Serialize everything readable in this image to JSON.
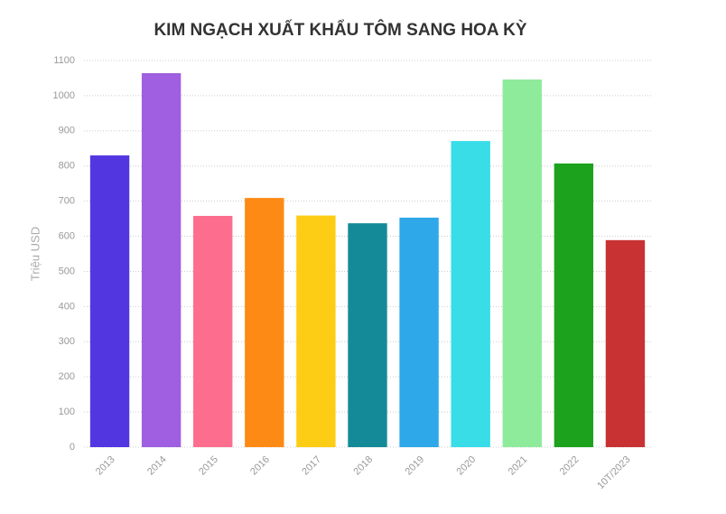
{
  "chart_data": {
    "type": "bar",
    "title": "KIM NGẠCH XUẤT KHẨU TÔM SANG HOA KỲ",
    "y_label": "Triệu USD",
    "categories": [
      "2013",
      "2014",
      "2015",
      "2016",
      "2017",
      "2018",
      "2019",
      "2020",
      "2021",
      "2022",
      "10T/2023"
    ],
    "values": [
      830,
      1064,
      658,
      709,
      659,
      637,
      653,
      871,
      1046,
      807,
      589
    ],
    "colors": [
      "#5236e0",
      "#a05ee0",
      "#fd6e8e",
      "#fd8a14",
      "#fdcc14",
      "#148a99",
      "#2ea8e8",
      "#38dde8",
      "#8eeb9c",
      "#1da21d",
      "#c93232"
    ],
    "ylim": [
      0,
      1100
    ],
    "yticks": [
      0,
      100,
      200,
      300,
      400,
      500,
      600,
      700,
      800,
      900,
      1000,
      1100
    ],
    "grid": true
  }
}
